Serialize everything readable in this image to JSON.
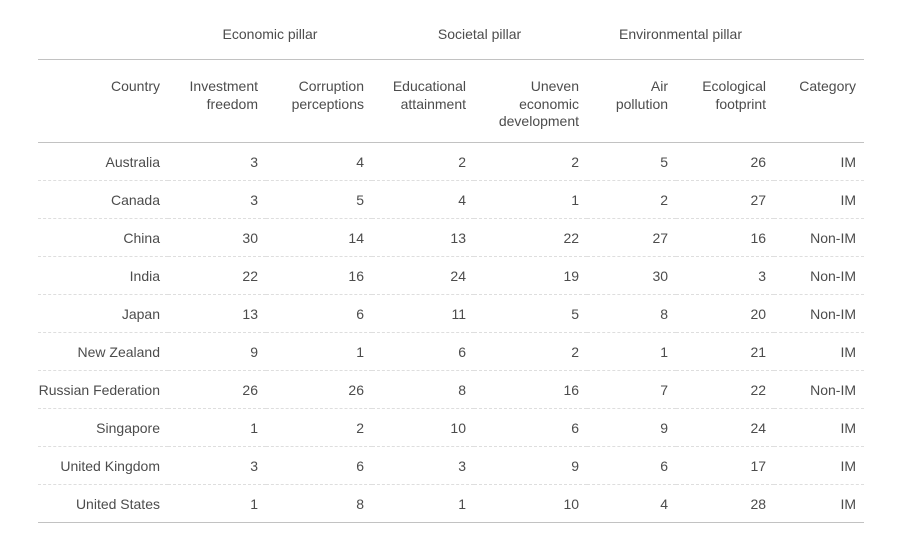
{
  "colors": {
    "text": "#4c4c4c",
    "rule": "#c2c2c2",
    "row_divider": "#dedede",
    "background": "#ffffff"
  },
  "chart_data": {
    "type": "table",
    "pillar_groups": [
      {
        "label": "Economic pillar",
        "colspan": 2
      },
      {
        "label": "Societal pillar",
        "colspan": 2
      },
      {
        "label": "Environmental pillar",
        "colspan": 2
      }
    ],
    "columns": [
      "Country",
      "Investment freedom",
      "Corruption perceptions",
      "Educational attainment",
      "Uneven economic development",
      "Air pollution",
      "Ecological footprint",
      "Category"
    ],
    "rows": [
      [
        "Australia",
        3,
        4,
        2,
        2,
        5,
        26,
        "IM"
      ],
      [
        "Canada",
        3,
        5,
        4,
        1,
        2,
        27,
        "IM"
      ],
      [
        "China",
        30,
        14,
        13,
        22,
        27,
        16,
        "Non-IM"
      ],
      [
        "India",
        22,
        16,
        24,
        19,
        30,
        3,
        "Non-IM"
      ],
      [
        "Japan",
        13,
        6,
        11,
        5,
        8,
        20,
        "Non-IM"
      ],
      [
        "New Zealand",
        9,
        1,
        6,
        2,
        1,
        21,
        "IM"
      ],
      [
        "Russian Federation",
        26,
        26,
        8,
        16,
        7,
        22,
        "Non-IM"
      ],
      [
        "Singapore",
        1,
        2,
        10,
        6,
        9,
        24,
        "IM"
      ],
      [
        "United Kingdom",
        3,
        6,
        3,
        9,
        6,
        17,
        "IM"
      ],
      [
        "United States",
        1,
        8,
        1,
        10,
        4,
        28,
        "IM"
      ]
    ]
  }
}
